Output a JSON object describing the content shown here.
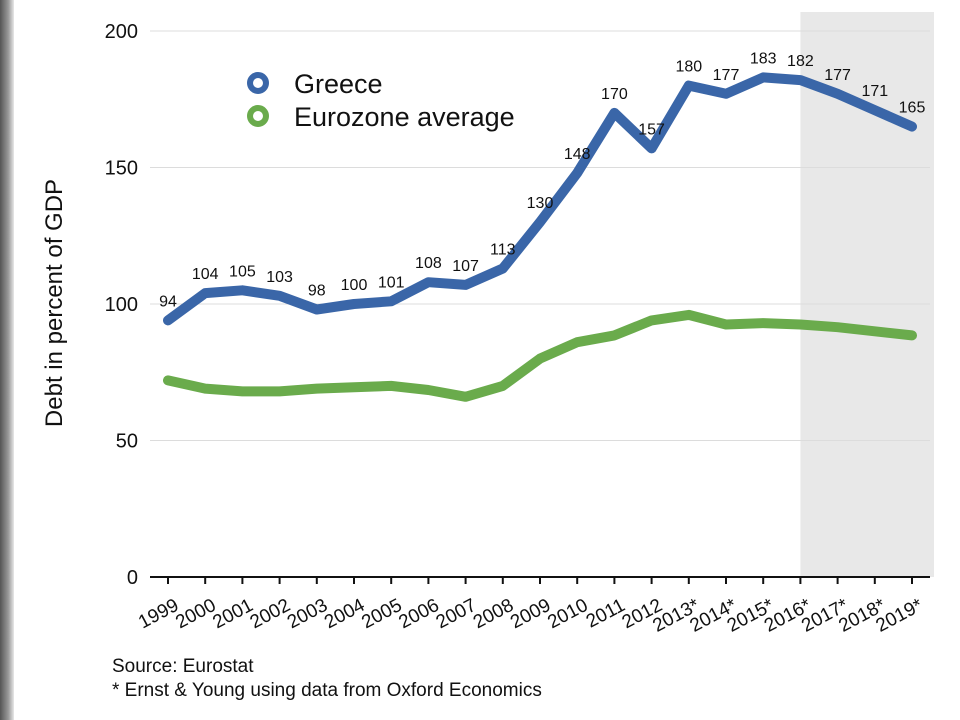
{
  "chart_data": {
    "type": "line",
    "title": "",
    "xlabel": "",
    "ylabel": "Debt in percent of GDP",
    "ylim": [
      0,
      200
    ],
    "yticks": [
      0,
      50,
      100,
      150,
      200
    ],
    "grid": "horizontal",
    "legend": "top-left",
    "shaded_projection_range": [
      "2016*",
      "2019*"
    ],
    "categories": [
      "1999",
      "2000",
      "2001",
      "2002",
      "2003",
      "2004",
      "2005",
      "2006",
      "2007",
      "2008",
      "2009",
      "2010",
      "2011",
      "2012",
      "2013*",
      "2014*",
      "2015*",
      "2016*",
      "2017*",
      "2018*",
      "2019*"
    ],
    "series": [
      {
        "name": "Greece",
        "color": "#3a66a8",
        "values": [
          94,
          104,
          105,
          103,
          98,
          100,
          101,
          108,
          107,
          113,
          130,
          148,
          170,
          157,
          180,
          177,
          183,
          182,
          177,
          171,
          165
        ],
        "labels": [
          "94",
          "104",
          "105",
          "103",
          "98",
          "100",
          "101",
          "108",
          "107",
          "113",
          "130",
          "148",
          "170",
          "157",
          "180",
          "177",
          "183",
          "182",
          "177",
          "171",
          "165"
        ]
      },
      {
        "name": "Eurozone average",
        "color": "#6aab4c",
        "values": [
          72,
          69,
          68,
          68,
          69,
          69.5,
          70,
          68.5,
          66,
          70,
          80,
          86,
          88.5,
          94,
          96,
          92.5,
          93,
          92.5,
          91.5,
          90,
          88.5
        ]
      }
    ]
  },
  "notes": {
    "source": "Source: Eurostat",
    "footnote": "* Ernst & Young using data from Oxford Economics"
  }
}
